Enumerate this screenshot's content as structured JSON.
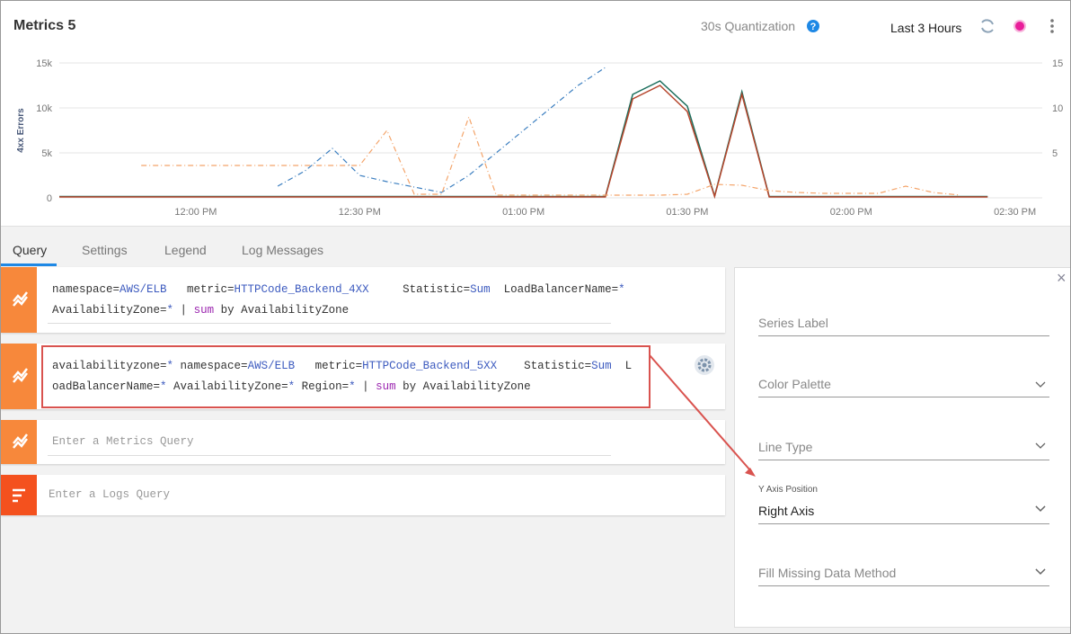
{
  "header": {
    "title": "Metrics 5",
    "quantization": "30s Quantization",
    "time_range": "Last 3 Hours"
  },
  "chart_data": {
    "type": "line",
    "ylabel": "4xx Errors",
    "categories": [
      null,
      null,
      null,
      null,
      null,
      "12:00 PM",
      null,
      null,
      null,
      null,
      null,
      "12:30 PM",
      null,
      null,
      null,
      null,
      null,
      "01:00 PM",
      null,
      null,
      null,
      null,
      null,
      "01:30 PM",
      null,
      null,
      null,
      null,
      null,
      "02:00 PM",
      null,
      null,
      null,
      null,
      null,
      "02:30 PM",
      null
    ],
    "ylim": [
      0,
      15000
    ],
    "yticks": [
      0,
      {
        "value": 5000,
        "label": "5k"
      },
      {
        "value": 10000,
        "label": "10k"
      },
      {
        "value": 15000,
        "label": "15k"
      }
    ],
    "y2lim": [
      0,
      15
    ],
    "y2ticks": [
      5,
      10,
      15
    ],
    "grid": true,
    "series": [
      {
        "color": "#1b6e5c",
        "axis": "y",
        "linestyle": "solid",
        "values": [
          150,
          150,
          150,
          150,
          150,
          150,
          150,
          150,
          150,
          150,
          150,
          150,
          150,
          150,
          150,
          150,
          150,
          150,
          150,
          150,
          150,
          11500,
          13000,
          10200,
          200,
          11800,
          150,
          150,
          150,
          150,
          150,
          150,
          150,
          150,
          150,
          null,
          null
        ]
      },
      {
        "color": "#b5452c",
        "axis": "y",
        "linestyle": "solid",
        "values": [
          100,
          100,
          100,
          100,
          100,
          100,
          100,
          100,
          100,
          100,
          100,
          100,
          100,
          100,
          100,
          100,
          100,
          100,
          100,
          100,
          100,
          11000,
          12500,
          9600,
          150,
          11500,
          100,
          100,
          100,
          100,
          100,
          100,
          100,
          100,
          100,
          null,
          null
        ]
      },
      {
        "color": "#3c7fc0",
        "axis": "y2",
        "linestyle": "dashdot",
        "values": [
          null,
          null,
          null,
          null,
          null,
          null,
          null,
          null,
          1.3,
          3,
          5.5,
          2.5,
          1.8,
          1.2,
          0.6,
          2.5,
          5,
          7.5,
          10,
          12.5,
          14.5,
          null,
          null,
          null,
          null,
          null,
          null,
          null,
          null,
          null,
          null,
          null,
          null,
          null,
          null,
          null,
          null
        ]
      },
      {
        "color": "#f4a46a",
        "axis": "y2",
        "linestyle": "dashdot",
        "values": [
          null,
          null,
          null,
          3.6,
          3.6,
          3.6,
          3.6,
          3.6,
          3.6,
          3.6,
          3.6,
          3.6,
          7.5,
          0.4,
          0.4,
          9,
          0.3,
          0.3,
          0.3,
          0.3,
          0.3,
          0.3,
          0.3,
          0.4,
          1.5,
          1.4,
          0.8,
          0.6,
          0.5,
          0.5,
          0.5,
          1.3,
          0.6,
          0.3,
          null,
          null,
          null
        ]
      }
    ]
  },
  "tabs": [
    "Query",
    "Settings",
    "Legend",
    "Log Messages"
  ],
  "queries": [
    {
      "lines": [
        [
          "namespace=",
          "AWS/ELB",
          "   metric=",
          "HTTPCode_Backend_4XX",
          "     Statistic=",
          "Sum",
          "  LoadBalancerName=",
          "*"
        ],
        [
          "AvailabilityZone=",
          "*",
          " | ",
          "sum",
          " by AvailabilityZone"
        ]
      ]
    },
    {
      "lines": [
        [
          "availabilityzone=",
          "*",
          " namespace=",
          "AWS/ELB",
          "   metric=",
          "HTTPCode_Backend_5XX",
          "    Statistic=",
          "Sum",
          "  L"
        ],
        [
          "oadBalancerName=",
          "*",
          " AvailabilityZone=",
          "*",
          " Region=",
          "*",
          " | ",
          "sum",
          " by AvailabilityZone"
        ]
      ]
    },
    {
      "placeholder": "Enter a Metrics Query"
    },
    {
      "placeholder": "Enter a Logs Query"
    }
  ],
  "panel": {
    "series_label": "Series Label",
    "color_palette": "Color Palette",
    "line_type": "Line Type",
    "y_axis_label": "Y Axis Position",
    "y_axis_value": "Right Axis",
    "fill_missing": "Fill Missing Data Method"
  }
}
